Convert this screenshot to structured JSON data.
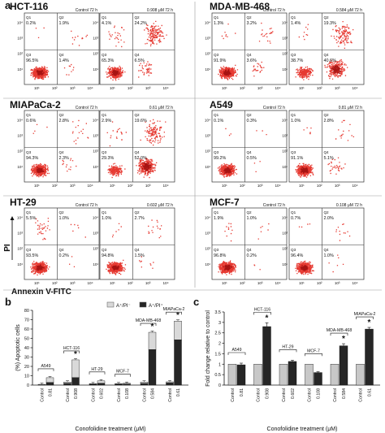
{
  "panel_labels": {
    "a": "a",
    "b": "b",
    "c": "c"
  },
  "panel_a": {
    "y_axis_label": "PI",
    "x_axis_label": "Annexin V-FITC",
    "tick_labels": [
      "10¹",
      "10²",
      "10³",
      "10⁴"
    ],
    "cell_lines": [
      {
        "name": "HCT-116",
        "control_label": "Control 72 h",
        "treated_label": "0.908 μM 72 h",
        "control": {
          "q1": "Q1",
          "q2": "Q2",
          "q3": "Q3",
          "q4": "Q4",
          "v1": "0.2%",
          "v2": "1.9%",
          "v3": "96.5%",
          "v4": "1.4%"
        },
        "treated": {
          "q1": "Q1",
          "q2": "Q2",
          "q3": "Q3",
          "q4": "Q4",
          "v1": "4.1%",
          "v2": "24.2%",
          "v3": "65.3%",
          "v4": "6.5%"
        }
      },
      {
        "name": "MDA-MB-468",
        "control_label": "Control 72 h",
        "treated_label": "0.584 μM 72 h",
        "control": {
          "q1": "Q1",
          "q2": "Q2",
          "q3": "Q3",
          "q4": "Q4",
          "v1": "1.3%",
          "v2": "3.2%",
          "v3": "91.9%",
          "v4": "3.6%"
        },
        "treated": {
          "q1": "Q1",
          "q2": "Q2",
          "q3": "Q3",
          "q4": "Q4",
          "v1": "1.4%",
          "v2": "19.3%",
          "v3": "38.7%",
          "v4": "40.6%"
        }
      },
      {
        "name": "MIAPaCa-2",
        "control_label": "Control 72 h",
        "treated_label": "0.61 μM 72 h",
        "control": {
          "q1": "Q1",
          "q2": "Q2",
          "q3": "Q3",
          "q4": "Q4",
          "v1": "0.6%",
          "v2": "2.8%",
          "v3": "94.3%",
          "v4": "2.3%"
        },
        "treated": {
          "q1": "Q1",
          "q2": "Q2",
          "q3": "Q3",
          "q4": "Q4",
          "v1": "2.9%",
          "v2": "19.6%",
          "v3": "29.3%",
          "v4": "52.0%"
        }
      },
      {
        "name": "A549",
        "control_label": "Control 72 h",
        "treated_label": "0.81 μM 72 h",
        "control": {
          "q1": "Q1",
          "q2": "Q2",
          "q3": "Q3",
          "q4": "Q4",
          "v1": "0.1%",
          "v2": "0.3%",
          "v3": "99.2%",
          "v4": "0.5%"
        },
        "treated": {
          "q1": "Q1",
          "q2": "Q2",
          "q3": "Q3",
          "q4": "Q4",
          "v1": "1.0%",
          "v2": "2.8%",
          "v3": "91.1%",
          "v4": "5.1%"
        }
      },
      {
        "name": "HT-29",
        "control_label": "Control 72 h",
        "treated_label": "0.602 μM 72 h",
        "control": {
          "q1": "Q1",
          "q2": "Q2",
          "q3": "Q3",
          "q4": "Q4",
          "v1": "5.5%",
          "v2": "1.0%",
          "v3": "93.5%",
          "v4": "0.2%"
        },
        "treated": {
          "q1": "Q1",
          "q2": "Q2",
          "q3": "Q3",
          "q4": "Q4",
          "v1": "1.0%",
          "v2": "2.7%",
          "v3": "94.8%",
          "v4": "1.5%"
        }
      },
      {
        "name": "MCF-7",
        "control_label": "Control 72 h",
        "treated_label": "0.108 μM 72 h",
        "control": {
          "q1": "Q1",
          "q2": "Q2",
          "q3": "Q3",
          "q4": "Q4",
          "v1": "1.9%",
          "v2": "1.0%",
          "v3": "96.8%",
          "v4": "0.2%"
        },
        "treated": {
          "q1": "Q1",
          "q2": "Q2",
          "q3": "Q3",
          "q4": "Q4",
          "v1": "0.7%",
          "v2": "2.0%",
          "v3": "96.4%",
          "v4": "1.0%"
        }
      }
    ]
  },
  "chart_data": [
    {
      "type": "bar",
      "stacked": true,
      "ylabel": "(%) Apoptotic cells",
      "xlabel": "Conofolidine treatment (μM)",
      "ylim": [
        0,
        80
      ],
      "yticks": [
        0,
        10,
        20,
        30,
        40,
        50,
        60,
        70,
        80
      ],
      "legend": [
        "A⁺/PI⁻",
        "A⁺/PI⁺"
      ],
      "legend_placement": "top",
      "colors": {
        "early": "#d9d9d9",
        "late": "#262626"
      },
      "groups": [
        {
          "name": "A549",
          "categories": [
            "Control",
            "0.81"
          ],
          "early": [
            0.5,
            5.1
          ],
          "late": [
            0.3,
            2.8
          ],
          "star": [
            false,
            false
          ]
        },
        {
          "name": "HCT-116",
          "categories": [
            "Control",
            "0.908"
          ],
          "early": [
            1.4,
            19.0
          ],
          "late": [
            1.9,
            8.0
          ],
          "star": [
            false,
            true
          ]
        },
        {
          "name": "HT-29",
          "categories": [
            "Control",
            "0.602"
          ],
          "early": [
            0.5,
            2.5
          ],
          "late": [
            1.0,
            2.0
          ],
          "star": [
            false,
            false
          ]
        },
        {
          "name": "MCF-7",
          "categories": [
            "Control",
            "0.108"
          ],
          "early": [
            0.5,
            0.8
          ],
          "late": [
            1.0,
            1.2
          ],
          "star": [
            false,
            false
          ]
        },
        {
          "name": "MDA-MB-468",
          "categories": [
            "Control",
            "0.584"
          ],
          "early": [
            1.5,
            18.5
          ],
          "late": [
            1.8,
            38.0
          ],
          "star": [
            false,
            true
          ]
        },
        {
          "name": "MIAPaCa-2",
          "categories": [
            "Control",
            "0.61"
          ],
          "early": [
            1.0,
            20.0
          ],
          "late": [
            2.5,
            48.5
          ],
          "star": [
            false,
            true
          ]
        }
      ]
    },
    {
      "type": "bar",
      "ylabel": "Fold change relative to control",
      "xlabel": "Conofolidine treatment (μM)",
      "ylim": [
        0,
        3.5
      ],
      "yticks": [
        0,
        0.5,
        1,
        1.5,
        2,
        2.5,
        3,
        3.5
      ],
      "colors": {
        "control": "#c8c8c8",
        "treated": "#262626"
      },
      "groups": [
        {
          "name": "A549",
          "categories": [
            "Control",
            "0.81"
          ],
          "values": [
            1.0,
            0.97
          ],
          "errors": [
            0,
            0.08
          ],
          "star": [
            false,
            false
          ]
        },
        {
          "name": "HCT-116",
          "categories": [
            "Control",
            "0.908"
          ],
          "values": [
            1.0,
            2.8
          ],
          "errors": [
            0,
            0.18
          ],
          "star": [
            false,
            true
          ]
        },
        {
          "name": "HT-29",
          "categories": [
            "Control",
            "0.602"
          ],
          "values": [
            1.0,
            1.13
          ],
          "errors": [
            0,
            0.06
          ],
          "star": [
            false,
            false
          ]
        },
        {
          "name": "MCF-7",
          "categories": [
            "Control",
            "0.108"
          ],
          "values": [
            1.0,
            0.6
          ],
          "errors": [
            0,
            0.04
          ],
          "star": [
            false,
            false
          ]
        },
        {
          "name": "MDA-MB-468",
          "categories": [
            "Control",
            "0.584"
          ],
          "values": [
            1.0,
            1.88
          ],
          "errors": [
            0,
            0.1
          ],
          "star": [
            false,
            true
          ]
        },
        {
          "name": "MIAPaCa-2",
          "categories": [
            "Control",
            "0.61"
          ],
          "values": [
            1.0,
            2.68
          ],
          "errors": [
            0,
            0.08
          ],
          "star": [
            false,
            true
          ]
        }
      ]
    }
  ],
  "star_symbol": "*"
}
